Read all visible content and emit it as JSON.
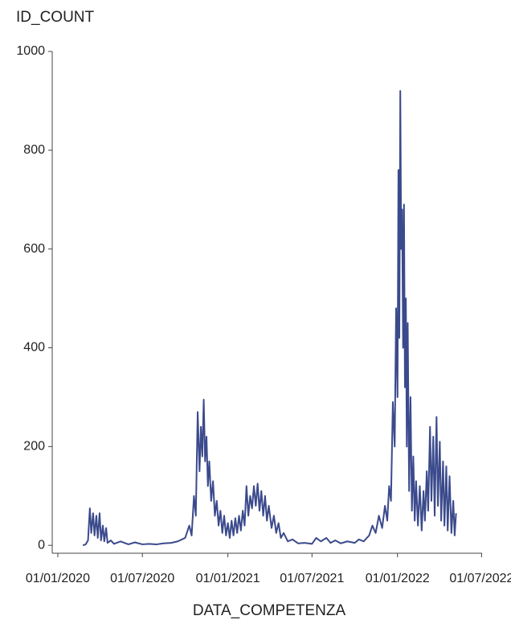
{
  "chart_data": {
    "type": "line",
    "y_title": "ID_COUNT",
    "x_title": "DATA_COMPETENZA",
    "color": "#3b4a8c",
    "x": [
      "2020-02-24",
      "2020-03-01",
      "2020-03-06",
      "2020-03-10",
      "2020-03-13",
      "2020-03-17",
      "2020-03-20",
      "2020-03-24",
      "2020-03-27",
      "2020-03-31",
      "2020-04-03",
      "2020-04-07",
      "2020-04-10",
      "2020-04-14",
      "2020-04-17",
      "2020-04-24",
      "2020-05-01",
      "2020-05-15",
      "2020-06-01",
      "2020-06-15",
      "2020-07-01",
      "2020-07-15",
      "2020-08-01",
      "2020-08-15",
      "2020-09-01",
      "2020-09-15",
      "2020-10-01",
      "2020-10-10",
      "2020-10-15",
      "2020-10-20",
      "2020-10-24",
      "2020-10-28",
      "2020-11-01",
      "2020-11-04",
      "2020-11-07",
      "2020-11-10",
      "2020-11-13",
      "2020-11-16",
      "2020-11-19",
      "2020-11-22",
      "2020-11-26",
      "2020-11-30",
      "2020-12-04",
      "2020-12-08",
      "2020-12-12",
      "2020-12-16",
      "2020-12-20",
      "2020-12-24",
      "2020-12-28",
      "2021-01-01",
      "2021-01-05",
      "2021-01-09",
      "2021-01-13",
      "2021-01-17",
      "2021-01-21",
      "2021-01-25",
      "2021-01-29",
      "2021-02-02",
      "2021-02-06",
      "2021-02-10",
      "2021-02-14",
      "2021-02-18",
      "2021-02-22",
      "2021-02-26",
      "2021-03-02",
      "2021-03-06",
      "2021-03-10",
      "2021-03-14",
      "2021-03-18",
      "2021-03-22",
      "2021-03-26",
      "2021-03-30",
      "2021-04-05",
      "2021-04-10",
      "2021-04-15",
      "2021-04-20",
      "2021-04-25",
      "2021-05-01",
      "2021-05-10",
      "2021-05-20",
      "2021-06-01",
      "2021-06-15",
      "2021-07-01",
      "2021-07-10",
      "2021-07-20",
      "2021-08-01",
      "2021-08-10",
      "2021-08-20",
      "2021-09-01",
      "2021-09-15",
      "2021-10-01",
      "2021-10-10",
      "2021-10-20",
      "2021-11-01",
      "2021-11-08",
      "2021-11-15",
      "2021-11-22",
      "2021-11-29",
      "2021-12-05",
      "2021-12-10",
      "2021-12-14",
      "2021-12-18",
      "2021-12-22",
      "2021-12-26",
      "2021-12-29",
      "2022-01-01",
      "2022-01-03",
      "2022-01-05",
      "2022-01-07",
      "2022-01-09",
      "2022-01-11",
      "2022-01-13",
      "2022-01-15",
      "2022-01-17",
      "2022-01-19",
      "2022-01-21",
      "2022-01-23",
      "2022-01-26",
      "2022-01-29",
      "2022-02-01",
      "2022-02-04",
      "2022-02-07",
      "2022-02-10",
      "2022-02-14",
      "2022-02-18",
      "2022-02-22",
      "2022-02-26",
      "2022-03-01",
      "2022-03-05",
      "2022-03-08",
      "2022-03-12",
      "2022-03-15",
      "2022-03-19",
      "2022-03-22",
      "2022-03-26",
      "2022-03-29",
      "2022-04-02",
      "2022-04-05",
      "2022-04-09",
      "2022-04-12",
      "2022-04-16",
      "2022-04-19",
      "2022-04-23",
      "2022-04-27",
      "2022-05-01",
      "2022-05-04",
      "2022-05-07"
    ],
    "values": [
      0,
      2,
      10,
      75,
      25,
      65,
      20,
      60,
      15,
      65,
      10,
      40,
      8,
      35,
      5,
      10,
      3,
      8,
      2,
      6,
      2,
      3,
      2,
      4,
      5,
      8,
      15,
      40,
      20,
      100,
      60,
      270,
      150,
      240,
      180,
      295,
      170,
      220,
      120,
      170,
      90,
      130,
      60,
      90,
      40,
      70,
      25,
      60,
      20,
      45,
      15,
      50,
      20,
      55,
      25,
      60,
      30,
      70,
      40,
      120,
      60,
      100,
      75,
      120,
      80,
      125,
      70,
      110,
      60,
      100,
      50,
      80,
      35,
      60,
      25,
      45,
      15,
      25,
      8,
      12,
      4,
      5,
      3,
      15,
      8,
      15,
      5,
      10,
      4,
      8,
      5,
      12,
      8,
      20,
      40,
      25,
      60,
      35,
      80,
      50,
      120,
      90,
      290,
      200,
      480,
      300,
      760,
      420,
      920,
      600,
      680,
      400,
      690,
      320,
      500,
      200,
      450,
      110,
      300,
      70,
      180,
      50,
      130,
      40,
      120,
      30,
      110,
      50,
      150,
      70,
      240,
      90,
      220,
      60,
      260,
      80,
      210,
      50,
      170,
      40,
      160,
      30,
      140,
      25,
      90,
      20,
      65
    ],
    "xlim": [
      "2019-12-20",
      "2022-07-02"
    ],
    "xticks": [
      {
        "value": "2020-01-01",
        "label": "01/01/2020"
      },
      {
        "value": "2020-07-01",
        "label": "01/07/2020"
      },
      {
        "value": "2021-01-01",
        "label": "01/01/2021"
      },
      {
        "value": "2021-07-01",
        "label": "01/07/2021"
      },
      {
        "value": "2022-01-01",
        "label": "01/01/2022"
      },
      {
        "value": "2022-07-01",
        "label": "01/07/2022"
      }
    ],
    "ylim": [
      -16,
      1000
    ],
    "yticks": [
      0,
      200,
      400,
      600,
      800,
      1000
    ],
    "grid": false
  }
}
